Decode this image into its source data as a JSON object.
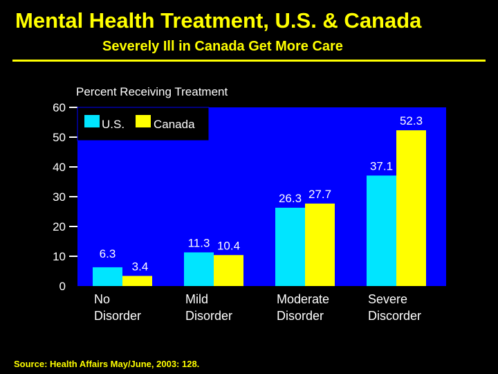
{
  "title": "Mental Health Treatment, U.S. & Canada",
  "subtitle": "Severely Ill in Canada Get More Care",
  "source": "Source: Health Affairs May/June, 2003: 128.",
  "colors": {
    "background": "#000000",
    "plot": "#0000ff",
    "text": "#ffff00",
    "us": "#00e5ff",
    "canada": "#ffff00"
  },
  "chart_data": {
    "type": "bar",
    "title": "Percent Receiving Treatment",
    "categories": [
      [
        "No",
        "Disorder"
      ],
      [
        "Mild",
        "Disorder"
      ],
      [
        "Moderate",
        "Disorder"
      ],
      [
        "Severe",
        "Discorder"
      ]
    ],
    "series": [
      {
        "name": "U.S.",
        "values": [
          6.3,
          11.3,
          26.3,
          37.1
        ],
        "labels": [
          "6.3",
          "11.3",
          "26.3",
          "37.1"
        ]
      },
      {
        "name": "Canada",
        "values": [
          3.4,
          10.4,
          27.7,
          52.3
        ],
        "labels": [
          "3.4",
          "10.4",
          "27.7",
          "52.3"
        ]
      }
    ],
    "ylim": [
      0,
      60
    ],
    "yticks": [
      0,
      10,
      20,
      30,
      40,
      50,
      60
    ],
    "legend": "top-left"
  }
}
